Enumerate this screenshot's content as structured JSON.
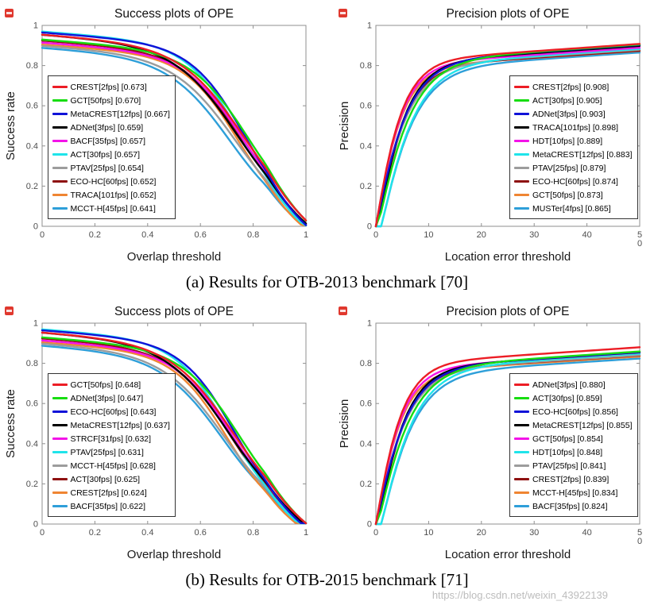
{
  "page": {
    "captions": {
      "a": "(a)  Results for OTB-2013 benchmark [70]",
      "b": "(b)  Results for OTB-2015 benchmark [71]"
    },
    "watermark": "https://blog.csdn.net/weixin_43922139"
  },
  "colors": {
    "axes_box": "#8f8f8f",
    "tick_label": "#4f4f4f",
    "title_text": "#101010",
    "corner_stamp": "#e0382e",
    "watermark_text": "#bcbcbc"
  },
  "chart_data": [
    {
      "type": "line",
      "title": "Success plots of OPE",
      "xlabel": "Overlap threshold",
      "ylabel": "Success rate",
      "xlim": [
        0,
        1
      ],
      "ylim": [
        0,
        1
      ],
      "xticks": [
        "0",
        "0.2",
        "0.4",
        "0.6",
        "0.8",
        "1"
      ],
      "yticks": [
        "0",
        "0.2",
        "0.4",
        "0.6",
        "0.8",
        "1"
      ],
      "grid": false,
      "curve": "success",
      "legend_side": "left",
      "series": [
        {
          "label": "CREST[2fps] [0.673]",
          "tracker": "CREST",
          "fps": "2fps",
          "score": 0.673,
          "color": "#ec1d25"
        },
        {
          "label": "GCT[50fps] [0.670]",
          "tracker": "GCT",
          "fps": "50fps",
          "score": 0.67,
          "color": "#17dd10"
        },
        {
          "label": "MetaCREST[12fps] [0.667]",
          "tracker": "MetaCREST",
          "fps": "12fps",
          "score": 0.667,
          "color": "#1012d8"
        },
        {
          "label": "ADNet[3fps] [0.659]",
          "tracker": "ADNet",
          "fps": "3fps",
          "score": 0.659,
          "color": "#000000"
        },
        {
          "label": "BACF[35fps] [0.657]",
          "tracker": "BACF",
          "fps": "35fps",
          "score": 0.657,
          "color": "#f313e8"
        },
        {
          "label": "ACT[30fps] [0.657]",
          "tracker": "ACT",
          "fps": "30fps",
          "score": 0.657,
          "color": "#1fe4ea"
        },
        {
          "label": "PTAV[25fps] [0.654]",
          "tracker": "PTAV",
          "fps": "25fps",
          "score": 0.654,
          "color": "#9c9c9c"
        },
        {
          "label": "ECO-HC[60fps] [0.652]",
          "tracker": "ECO-HC",
          "fps": "60fps",
          "score": 0.652,
          "color": "#8e1010"
        },
        {
          "label": "TRACA[101fps] [0.652]",
          "tracker": "TRACA",
          "fps": "101fps",
          "score": 0.652,
          "color": "#ef8532"
        },
        {
          "label": "MCCT-H[45fps] [0.641]",
          "tracker": "MCCT-H",
          "fps": "45fps",
          "score": 0.641,
          "color": "#2e9fd9"
        }
      ]
    },
    {
      "type": "line",
      "title": "Precision plots of OPE",
      "xlabel": "Location error threshold",
      "ylabel": "Precision",
      "xlim": [
        0,
        50
      ],
      "ylim": [
        0,
        1
      ],
      "xticks": [
        "0",
        "10",
        "20",
        "30",
        "40",
        "50"
      ],
      "yticks": [
        "0",
        "0.2",
        "0.4",
        "0.6",
        "0.8",
        "1"
      ],
      "grid": false,
      "curve": "precision",
      "legend_side": "right",
      "series": [
        {
          "label": "CREST[2fps] [0.908]",
          "tracker": "CREST",
          "fps": "2fps",
          "score": 0.908,
          "color": "#ec1d25"
        },
        {
          "label": "ACT[30fps] [0.905]",
          "tracker": "ACT",
          "fps": "30fps",
          "score": 0.905,
          "color": "#17dd10"
        },
        {
          "label": "ADNet[3fps] [0.903]",
          "tracker": "ADNet",
          "fps": "3fps",
          "score": 0.903,
          "color": "#1012d8"
        },
        {
          "label": "TRACA[101fps] [0.898]",
          "tracker": "TRACA",
          "fps": "101fps",
          "score": 0.898,
          "color": "#000000"
        },
        {
          "label": "HDT[10fps] [0.889]",
          "tracker": "HDT",
          "fps": "10fps",
          "score": 0.889,
          "color": "#f313e8"
        },
        {
          "label": "MetaCREST[12fps] [0.883]",
          "tracker": "MetaCREST",
          "fps": "12fps",
          "score": 0.883,
          "color": "#1fe4ea"
        },
        {
          "label": "PTAV[25fps] [0.879]",
          "tracker": "PTAV",
          "fps": "25fps",
          "score": 0.879,
          "color": "#9c9c9c"
        },
        {
          "label": "ECO-HC[60fps] [0.874]",
          "tracker": "ECO-HC",
          "fps": "60fps",
          "score": 0.874,
          "color": "#8e1010"
        },
        {
          "label": "GCT[50fps] [0.873]",
          "tracker": "GCT",
          "fps": "50fps",
          "score": 0.873,
          "color": "#ef8532"
        },
        {
          "label": "MUSTer[4fps] [0.865]",
          "tracker": "MUSTer",
          "fps": "4fps",
          "score": 0.865,
          "color": "#2e9fd9"
        }
      ]
    },
    {
      "type": "line",
      "title": "Success plots of OPE",
      "xlabel": "Overlap threshold",
      "ylabel": "Success rate",
      "xlim": [
        0,
        1
      ],
      "ylim": [
        0,
        1
      ],
      "xticks": [
        "0",
        "0.2",
        "0.4",
        "0.6",
        "0.8",
        "1"
      ],
      "yticks": [
        "0",
        "0.2",
        "0.4",
        "0.6",
        "0.8",
        "1"
      ],
      "grid": false,
      "curve": "success",
      "legend_side": "left",
      "series": [
        {
          "label": "GCT[50fps] [0.648]",
          "tracker": "GCT",
          "fps": "50fps",
          "score": 0.648,
          "color": "#ec1d25"
        },
        {
          "label": "ADNet[3fps] [0.647]",
          "tracker": "ADNet",
          "fps": "3fps",
          "score": 0.647,
          "color": "#17dd10"
        },
        {
          "label": "ECO-HC[60fps] [0.643]",
          "tracker": "ECO-HC",
          "fps": "60fps",
          "score": 0.643,
          "color": "#1012d8"
        },
        {
          "label": "MetaCREST[12fps] [0.637]",
          "tracker": "MetaCREST",
          "fps": "12fps",
          "score": 0.637,
          "color": "#000000"
        },
        {
          "label": "STRCF[31fps] [0.632]",
          "tracker": "STRCF",
          "fps": "31fps",
          "score": 0.632,
          "color": "#f313e8"
        },
        {
          "label": "PTAV[25fps] [0.631]",
          "tracker": "PTAV",
          "fps": "25fps",
          "score": 0.631,
          "color": "#1fe4ea"
        },
        {
          "label": "MCCT-H[45fps] [0.628]",
          "tracker": "MCCT-H",
          "fps": "45fps",
          "score": 0.628,
          "color": "#9c9c9c"
        },
        {
          "label": "ACT[30fps] [0.625]",
          "tracker": "ACT",
          "fps": "30fps",
          "score": 0.625,
          "color": "#8e1010"
        },
        {
          "label": "CREST[2fps] [0.624]",
          "tracker": "CREST",
          "fps": "2fps",
          "score": 0.624,
          "color": "#ef8532"
        },
        {
          "label": "BACF[35fps] [0.622]",
          "tracker": "BACF",
          "fps": "35fps",
          "score": 0.622,
          "color": "#2e9fd9"
        }
      ]
    },
    {
      "type": "line",
      "title": "Precision plots of OPE",
      "xlabel": "Location error threshold",
      "ylabel": "Precision",
      "xlim": [
        0,
        50
      ],
      "ylim": [
        0,
        1
      ],
      "xticks": [
        "0",
        "10",
        "20",
        "30",
        "40",
        "50"
      ],
      "yticks": [
        "0",
        "0.2",
        "0.4",
        "0.6",
        "0.8",
        "1"
      ],
      "grid": false,
      "curve": "precision",
      "legend_side": "right",
      "series": [
        {
          "label": "ADNet[3fps] [0.880]",
          "tracker": "ADNet",
          "fps": "3fps",
          "score": 0.88,
          "color": "#ec1d25"
        },
        {
          "label": "ACT[30fps] [0.859]",
          "tracker": "ACT",
          "fps": "30fps",
          "score": 0.859,
          "color": "#17dd10"
        },
        {
          "label": "ECO-HC[60fps] [0.856]",
          "tracker": "ECO-HC",
          "fps": "60fps",
          "score": 0.856,
          "color": "#1012d8"
        },
        {
          "label": "MetaCREST[12fps] [0.855]",
          "tracker": "MetaCREST",
          "fps": "12fps",
          "score": 0.855,
          "color": "#000000"
        },
        {
          "label": "GCT[50fps] [0.854]",
          "tracker": "GCT",
          "fps": "50fps",
          "score": 0.854,
          "color": "#f313e8"
        },
        {
          "label": "HDT[10fps] [0.848]",
          "tracker": "HDT",
          "fps": "10fps",
          "score": 0.848,
          "color": "#1fe4ea"
        },
        {
          "label": "PTAV[25fps] [0.841]",
          "tracker": "PTAV",
          "fps": "25fps",
          "score": 0.841,
          "color": "#9c9c9c"
        },
        {
          "label": "CREST[2fps] [0.839]",
          "tracker": "CREST",
          "fps": "2fps",
          "score": 0.839,
          "color": "#8e1010"
        },
        {
          "label": "MCCT-H[45fps] [0.834]",
          "tracker": "MCCT-H",
          "fps": "45fps",
          "score": 0.834,
          "color": "#ef8532"
        },
        {
          "label": "BACF[35fps] [0.824]",
          "tracker": "BACF",
          "fps": "35fps",
          "score": 0.824,
          "color": "#2e9fd9"
        }
      ]
    }
  ]
}
